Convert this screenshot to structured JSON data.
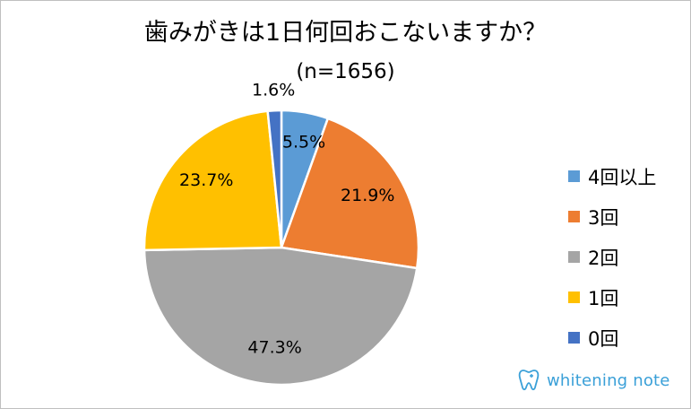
{
  "chart_data": {
    "type": "pie",
    "title": "歯みがきは1日何回おこないますか？",
    "subtitle": "(n=1656)",
    "start_angle_deg": 0,
    "direction": "clockwise",
    "legend_position": "right",
    "slices": [
      {
        "name": "4回以上",
        "value": 5.5,
        "label": "5.5%",
        "color": "#5b9bd5"
      },
      {
        "name": "3回",
        "value": 21.9,
        "label": "21.9%",
        "color": "#ed7d31"
      },
      {
        "name": "2回",
        "value": 47.3,
        "label": "47.3%",
        "color": "#a5a5a5"
      },
      {
        "name": "1回",
        "value": 23.7,
        "label": "23.7%",
        "color": "#ffc000"
      },
      {
        "name": "0回",
        "value": 1.6,
        "label": "1.6%",
        "color": "#4472c4"
      }
    ]
  },
  "brand": {
    "name": "whitening note",
    "icon": "tooth-icon",
    "color": "#3aa0d8"
  }
}
